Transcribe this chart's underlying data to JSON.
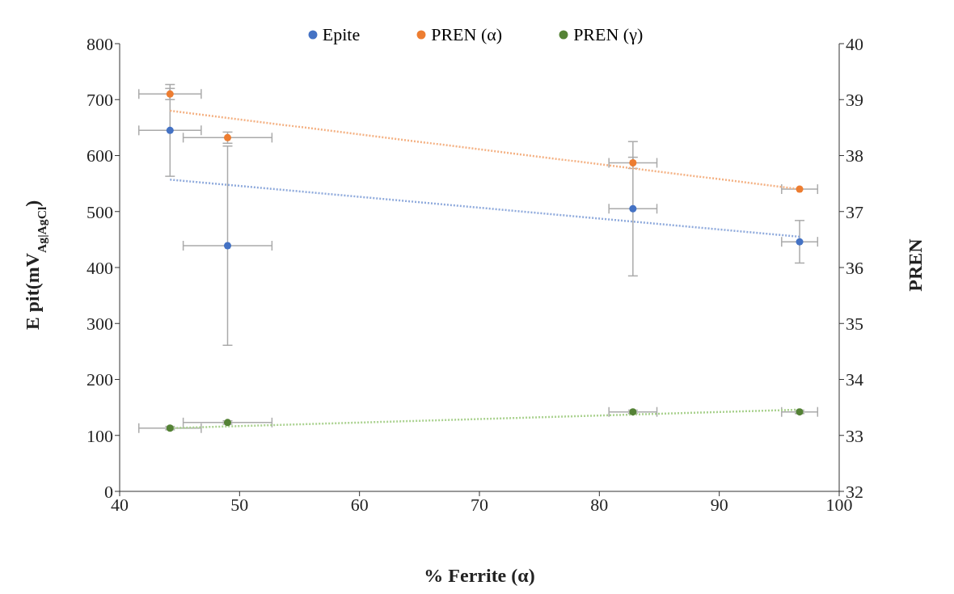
{
  "chart_data": {
    "type": "scatter",
    "xlabel": "% Ferrite (α)",
    "ylabel": "E pit(mV$_{Ag|AgCl}$)",
    "y2label": "PREN",
    "xlim": [
      40,
      100
    ],
    "xticks": [
      40,
      50,
      60,
      70,
      80,
      90,
      100
    ],
    "ylim": [
      0,
      800
    ],
    "yticks": [
      0,
      100,
      200,
      300,
      400,
      500,
      600,
      700,
      800
    ],
    "y2lim": [
      32,
      40
    ],
    "y2ticks": [
      32,
      33,
      34,
      35,
      36,
      37,
      38,
      39,
      40
    ],
    "legend": "top",
    "marker": "circle",
    "series": [
      {
        "name": "Epite",
        "color": "#4472c4",
        "x": [
          44.2,
          49.0,
          82.8,
          96.7
        ],
        "values": [
          645,
          439,
          505,
          446
        ],
        "errors": [
          82,
          178,
          120,
          38
        ],
        "xerrors": [
          2.6,
          3.7,
          2,
          1.5
        ]
      },
      {
        "name": "PREN (α)",
        "axis": "y2",
        "color": "#ed7d31",
        "x": [
          44.2,
          49.0,
          82.8,
          96.7
        ],
        "values": [
          39.1,
          38.32,
          37.87,
          37.4
        ],
        "errors": [
          0.1,
          0.1,
          0.1,
          null
        ],
        "xerrors": [
          2.6,
          3.7,
          2,
          1.5
        ]
      },
      {
        "name": "PREN (γ)",
        "axis": "y2",
        "color": "#548235",
        "x": [
          44.2,
          49.0,
          82.8,
          96.7
        ],
        "values": [
          33.13,
          33.23,
          33.42,
          33.42
        ],
        "errors": [
          0.03,
          0.03,
          0.03,
          0.03
        ],
        "xerrors": [
          2.6,
          3.7,
          2,
          1.5
        ]
      },
      {
        "type": "line",
        "color": "#8faadc",
        "line_style": "dotted",
        "marker": "none",
        "x": [
          44.2,
          96.7
        ],
        "values": [
          557,
          455
        ]
      },
      {
        "type": "line",
        "axis": "y2",
        "color": "#f4b183",
        "line_style": "dotted",
        "marker": "none",
        "x": [
          44.2,
          96.7
        ],
        "values": [
          38.8,
          37.4
        ]
      },
      {
        "type": "line",
        "axis": "y2",
        "color": "#a9d18e",
        "line_style": "dotted",
        "marker": "none",
        "x": [
          44.2,
          96.7
        ],
        "values": [
          33.13,
          33.46
        ]
      }
    ]
  }
}
